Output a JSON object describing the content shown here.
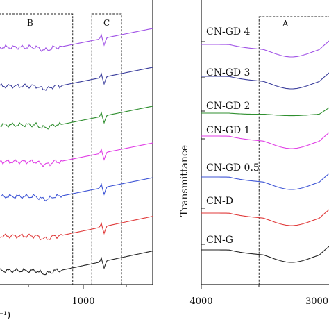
{
  "chart_data": [
    {
      "type": "line",
      "panel": "left",
      "xlabel_partial": "⁻¹)",
      "x_ticks": [
        1000
      ],
      "x_tick_labels": [
        "1000"
      ],
      "regions": [
        {
          "label": "B",
          "x": [
            1700,
            1050
          ]
        },
        {
          "label": "C",
          "x": [
            960,
            820
          ]
        }
      ],
      "series": [
        {
          "color": "#a052e6"
        },
        {
          "color": "#3a3d9c"
        },
        {
          "color": "#2f8f2f"
        },
        {
          "color": "#e13fe6"
        },
        {
          "color": "#3f56d6"
        },
        {
          "color": "#e03a3a"
        },
        {
          "color": "#222222"
        }
      ]
    },
    {
      "type": "line",
      "panel": "right",
      "ylabel": "Transmittance",
      "x_ticks": [
        4000,
        3000
      ],
      "x_tick_labels": [
        "4000",
        "3000"
      ],
      "regions": [
        {
          "label": "A",
          "x": [
            3500,
            2900
          ]
        }
      ],
      "series": [
        {
          "name": "CN-GD 4",
          "color": "#a052e6"
        },
        {
          "name": "CN-GD 3",
          "color": "#3a3d9c"
        },
        {
          "name": "CN-GD 2",
          "color": "#2f8f2f"
        },
        {
          "name": "CN-GD 1",
          "color": "#e13fe6"
        },
        {
          "name": "CN-GD 0.5",
          "color": "#3f56d6"
        },
        {
          "name": "CN-D",
          "color": "#e03a3a"
        },
        {
          "name": "CN-G",
          "color": "#222222"
        }
      ]
    }
  ]
}
